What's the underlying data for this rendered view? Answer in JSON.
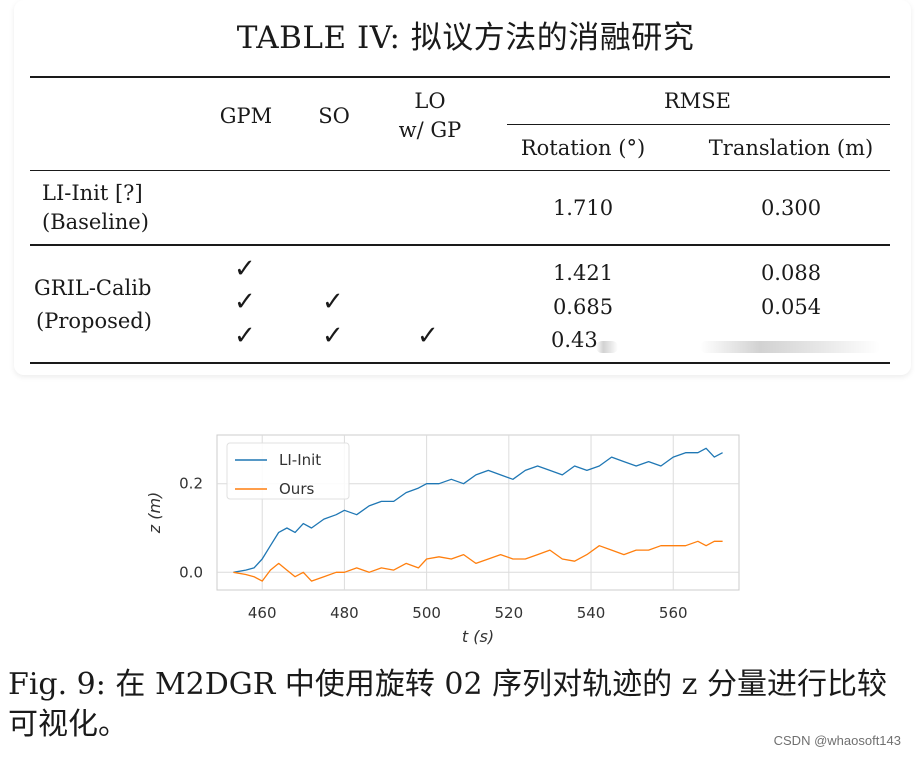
{
  "table": {
    "title": "TABLE IV: 拟议方法的消融研究",
    "header": {
      "gpm": "GPM",
      "so": "SO",
      "lo_line1": "LO",
      "lo_line2": "w/ GP",
      "rmse": "RMSE",
      "rotation": "Rotation (°)",
      "translation": "Translation (m)"
    },
    "baseline": {
      "name_line1": "LI-Init [?]",
      "name_line2": "(Baseline)",
      "rotation": "1.710",
      "translation": "0.300"
    },
    "proposed": {
      "name_line1": "GRIL-Calib",
      "name_line2": "(Proposed)",
      "check_glyph": "✓",
      "rows": [
        {
          "gpm": true,
          "so": false,
          "lo": false,
          "rotation": "1.421",
          "translation": "0.088"
        },
        {
          "gpm": true,
          "so": true,
          "lo": false,
          "rotation": "0.685",
          "translation": "0.054"
        },
        {
          "gpm": true,
          "so": true,
          "lo": true,
          "rotation": "0.43",
          "translation": ""
        }
      ]
    }
  },
  "chart_data": {
    "type": "line",
    "xlabel": "t (s)",
    "ylabel": "z (m)",
    "xlim": [
      449,
      576
    ],
    "ylim": [
      -0.04,
      0.31
    ],
    "xticks": [
      460,
      480,
      500,
      520,
      540,
      560
    ],
    "yticks": [
      0.0,
      0.2
    ],
    "xtick_labels": [
      "460",
      "480",
      "500",
      "520",
      "540",
      "560"
    ],
    "ytick_labels": [
      "0.0",
      "0.2"
    ],
    "grid": true,
    "legend": "top-left",
    "series": [
      {
        "name": "LI-Init",
        "color": "#1f77b4",
        "x": [
          453,
          456,
          458,
          460,
          462,
          464,
          466,
          468,
          470,
          472,
          475,
          478,
          480,
          483,
          486,
          489,
          492,
          495,
          498,
          500,
          503,
          506,
          509,
          512,
          515,
          518,
          521,
          524,
          527,
          530,
          533,
          536,
          539,
          542,
          545,
          548,
          551,
          554,
          557,
          560,
          563,
          566,
          568,
          570,
          572
        ],
        "y": [
          0.0,
          0.005,
          0.01,
          0.03,
          0.06,
          0.09,
          0.1,
          0.09,
          0.11,
          0.1,
          0.12,
          0.13,
          0.14,
          0.13,
          0.15,
          0.16,
          0.16,
          0.18,
          0.19,
          0.2,
          0.2,
          0.21,
          0.2,
          0.22,
          0.23,
          0.22,
          0.21,
          0.23,
          0.24,
          0.23,
          0.22,
          0.24,
          0.23,
          0.24,
          0.26,
          0.25,
          0.24,
          0.25,
          0.24,
          0.26,
          0.27,
          0.27,
          0.28,
          0.26,
          0.27
        ]
      },
      {
        "name": "Ours",
        "color": "#ff7f0e",
        "x": [
          453,
          456,
          458,
          460,
          462,
          464,
          466,
          468,
          470,
          472,
          475,
          478,
          480,
          483,
          486,
          489,
          492,
          495,
          498,
          500,
          503,
          506,
          509,
          512,
          515,
          518,
          521,
          524,
          527,
          530,
          533,
          536,
          539,
          542,
          545,
          548,
          551,
          554,
          557,
          560,
          563,
          566,
          568,
          570,
          572
        ],
        "y": [
          0.0,
          -0.005,
          -0.01,
          -0.02,
          0.005,
          0.02,
          0.005,
          -0.01,
          0.0,
          -0.02,
          -0.01,
          0.0,
          0.0,
          0.01,
          0.0,
          0.01,
          0.005,
          0.02,
          0.01,
          0.03,
          0.035,
          0.03,
          0.04,
          0.02,
          0.03,
          0.04,
          0.03,
          0.03,
          0.04,
          0.05,
          0.03,
          0.025,
          0.04,
          0.06,
          0.05,
          0.04,
          0.05,
          0.05,
          0.06,
          0.06,
          0.06,
          0.07,
          0.06,
          0.07,
          0.07
        ]
      }
    ]
  },
  "figure_caption": "Fig. 9: 在 M2DGR 中使用旋转 02 序列对轨迹的 z 分量进行比较可视化。",
  "watermark": "CSDN @whaosoft143"
}
